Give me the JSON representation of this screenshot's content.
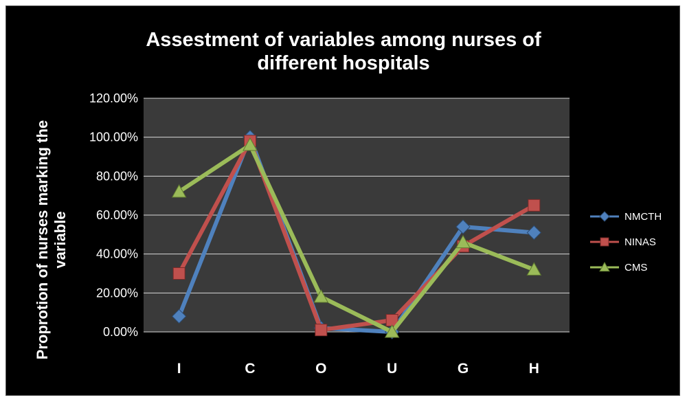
{
  "chart_data": {
    "type": "line",
    "title_lines": [
      "Assestment of variables among nurses of",
      "different hospitals"
    ],
    "ylabel_lines": [
      "Proprotion of nurses marking the",
      "variable"
    ],
    "xlabel": "",
    "categories": [
      "I",
      "C",
      "O",
      "U",
      "G",
      "H"
    ],
    "ylim": [
      0,
      1.2
    ],
    "y_ticks": [
      "0.00%",
      "20.00%",
      "40.00%",
      "60.00%",
      "80.00%",
      "100.00%",
      "120.00%"
    ],
    "grid": true,
    "legend_position": "right",
    "series": [
      {
        "name": "NMCTH",
        "values": [
          0.08,
          1.0,
          0.02,
          0.0,
          0.54,
          0.51
        ],
        "color": "#4f81bd",
        "marker": "diamond"
      },
      {
        "name": "NINAS",
        "values": [
          0.3,
          0.98,
          0.01,
          0.06,
          0.44,
          0.65
        ],
        "color": "#c0504d",
        "marker": "square"
      },
      {
        "name": "CMS",
        "values": [
          0.72,
          0.96,
          0.18,
          0.0,
          0.46,
          0.32
        ],
        "color": "#9bbb59",
        "marker": "triangle"
      }
    ],
    "plot_background": "#3a3a3a",
    "background": "#000000"
  }
}
